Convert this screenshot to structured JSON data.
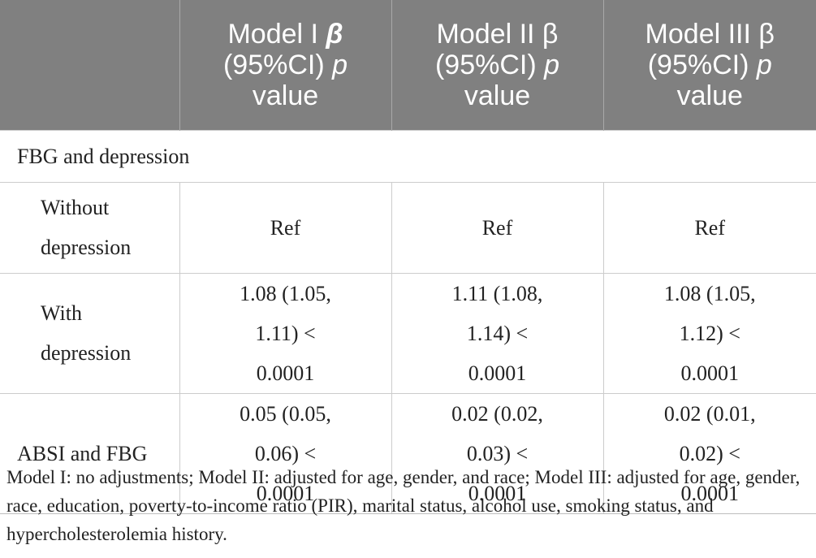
{
  "table": {
    "header": {
      "blank": "",
      "model1": {
        "line1_prefix": "Model I ",
        "beta": "β",
        "line2_prefix": "(95%CI) ",
        "p": "p",
        "line3": "value"
      },
      "model2": {
        "line1": "Model II β",
        "line2_prefix": "(95%CI) ",
        "p": "p",
        "line3": "value"
      },
      "model3": {
        "line1": "Model III β",
        "line2_prefix": "(95%CI) ",
        "p": "p",
        "line3": "value"
      }
    },
    "section": "FBG and depression",
    "rows": [
      {
        "label_lines": [
          "Without",
          "depression"
        ],
        "m1": [
          "Ref"
        ],
        "m2": [
          "Ref"
        ],
        "m3": [
          "Ref"
        ]
      },
      {
        "label_lines": [
          "With",
          "depression"
        ],
        "m1": [
          "1.08 (1.05,",
          "1.11) < 0.0001"
        ],
        "m2": [
          "1.11 (1.08,",
          "1.14) < 0.0001"
        ],
        "m3": [
          "1.08 (1.05,",
          "1.12) < 0.0001"
        ]
      },
      {
        "label_lines": [
          "ABSI and FBG"
        ],
        "m1": [
          "0.05 (0.05,",
          "0.06) < 0.0001"
        ],
        "m2": [
          "0.02 (0.02,",
          "0.03) < 0.0001"
        ],
        "m3": [
          "0.02 (0.01,",
          "0.02) < 0.0001"
        ]
      }
    ]
  },
  "footnote": "Model I: no adjustments; Model II: adjusted for age, gender, and race; Model III: adjusted for age, gender, race, education, poverty-to-income ratio (PIR), marital status, alcohol use, smoking status, and hypercholesterolemia history."
}
